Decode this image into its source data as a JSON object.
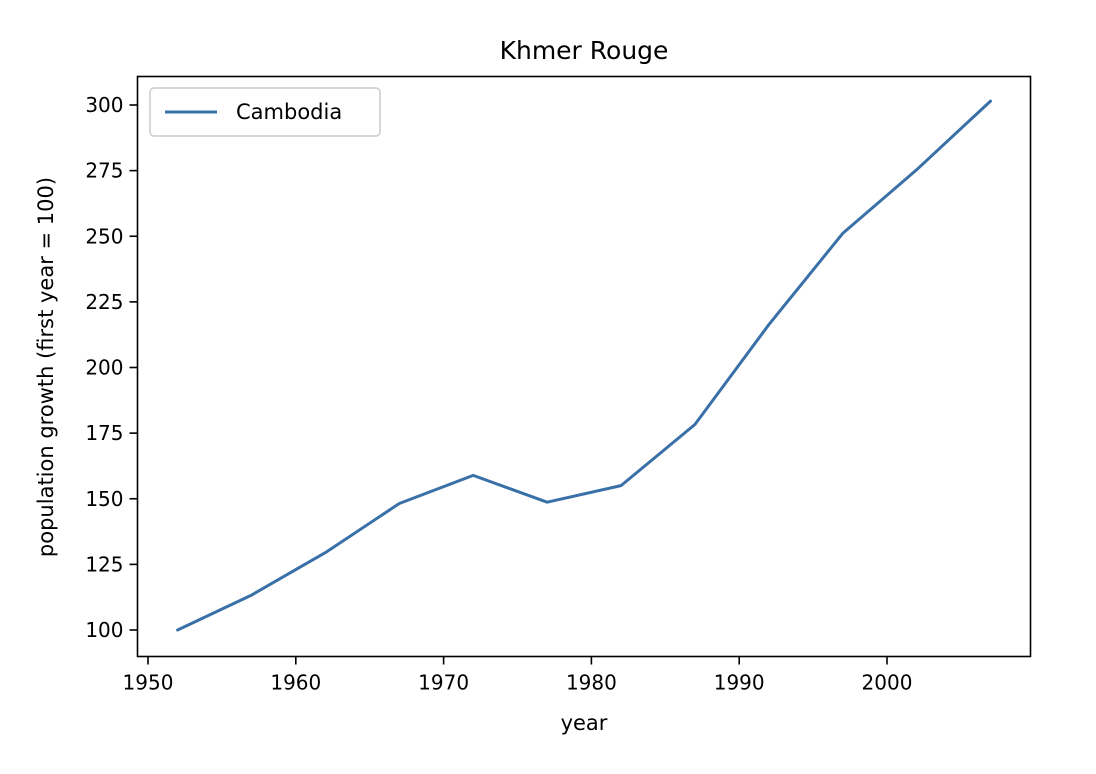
{
  "chart_data": {
    "type": "line",
    "title": "Khmer Rouge",
    "xlabel": "year",
    "ylabel": "population growth (first year = 100)",
    "xlim": [
      1950,
      2010
    ],
    "ylim": [
      100,
      300
    ],
    "xticks": [
      1950,
      1960,
      1970,
      1980,
      1990,
      2000
    ],
    "yticks": [
      100,
      125,
      150,
      175,
      200,
      225,
      250,
      275,
      300
    ],
    "grid": false,
    "legend_position": "top-left",
    "series": [
      {
        "name": "Cambodia",
        "color": "#3a70a8",
        "x": [
          1952,
          1957,
          1962,
          1967,
          1972,
          1977,
          1982,
          1987,
          1992,
          1997,
          2002,
          2007
        ],
        "y": [
          100,
          113.3,
          129.5,
          148.2,
          158.9,
          148.7,
          155.0,
          178.3,
          216.3,
          251.1,
          275.3,
          301.5
        ]
      }
    ]
  }
}
